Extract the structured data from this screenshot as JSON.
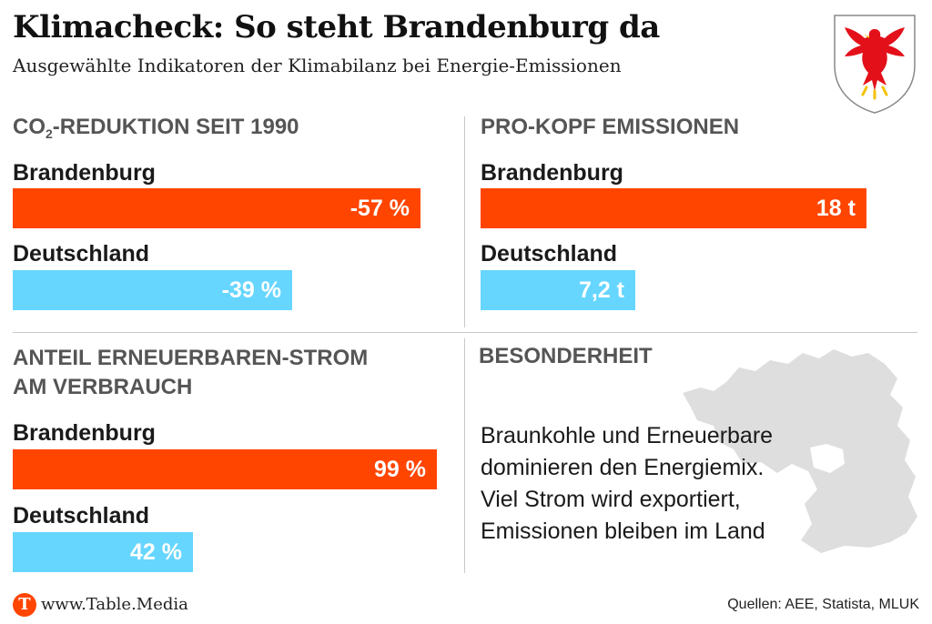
{
  "header": {
    "title": "Klimacheck: So steht Brandenburg da",
    "subtitle": "Ausgewählte Indikatoren der Klimabilanz bei Energie-Emissionen"
  },
  "colors": {
    "brandenburg": "#ff4500",
    "deutschland": "#66d6ff",
    "map": "#dedede"
  },
  "chart_data": [
    {
      "type": "bar",
      "title_parts": [
        "CO",
        "2",
        "-REDUKTION SEIT 1990"
      ],
      "categories": [
        "Brandenburg",
        "Deutschland"
      ],
      "values": [
        -57,
        -39
      ],
      "value_labels": [
        "-57 %",
        "-39 %"
      ],
      "unit": "%"
    },
    {
      "type": "bar",
      "title": "PRO-KOPF EMISSIONEN",
      "categories": [
        "Brandenburg",
        "Deutschland"
      ],
      "values": [
        18,
        7.2
      ],
      "value_labels": [
        "18 t",
        "7,2 t"
      ],
      "unit": "t"
    },
    {
      "type": "bar",
      "title_lines": [
        "ANTEIL ERNEUERBAREN-STROM",
        "AM VERBRAUCH"
      ],
      "categories": [
        "Brandenburg",
        "Deutschland"
      ],
      "values": [
        99,
        42
      ],
      "value_labels": [
        "99 %",
        "42 %"
      ],
      "unit": "%"
    }
  ],
  "special": {
    "title": "BESONDERHEIT",
    "lines": [
      "Braunkohle und Erneuerbare",
      "dominieren den Energiemix.",
      "Viel Strom wird exportiert,",
      "Emissionen bleiben im Land"
    ],
    "map_icon": "brandenburg-map-icon"
  },
  "crest_icon": "brandenburg-eagle-crest-icon",
  "footer": {
    "logo_letter": "T",
    "logo_text": "www.Table.Media",
    "sources": "Quellen: AEE, Statista, MLUK"
  }
}
